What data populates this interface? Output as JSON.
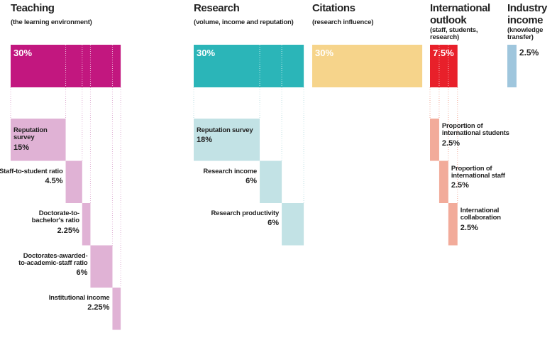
{
  "pillars": [
    {
      "title": "Teaching",
      "subtitle": "(the learning environment)",
      "weight": {
        "value": 30,
        "label": "30%"
      },
      "color": "#c2177f",
      "sub_color": "#e0b2d5",
      "components": [
        {
          "label": "Reputation survey",
          "weight": {
            "value": 15,
            "label": "15%"
          }
        },
        {
          "label": "Staff-to-student ratio",
          "weight": {
            "value": 4.5,
            "label": "4.5%"
          }
        },
        {
          "label": "Doctorate-to-bachelor's ratio",
          "weight": {
            "value": 2.25,
            "label": "2.25%"
          }
        },
        {
          "label": "Doctorates-awarded-to-academic-staff ratio",
          "weight": {
            "value": 6,
            "label": "6%"
          }
        },
        {
          "label": "Institutional income",
          "weight": {
            "value": 2.25,
            "label": "2.25%"
          }
        }
      ]
    },
    {
      "title": "Research",
      "subtitle": "(volume, income and reputation)",
      "weight": {
        "value": 30,
        "label": "30%"
      },
      "color": "#2bb5b8",
      "sub_color": "#c2e2e5",
      "components": [
        {
          "label": "Reputation survey",
          "weight": {
            "value": 18,
            "label": "18%"
          }
        },
        {
          "label": "Research income",
          "weight": {
            "value": 6,
            "label": "6%"
          }
        },
        {
          "label": "Research productivity",
          "weight": {
            "value": 6,
            "label": "6%"
          }
        }
      ]
    },
    {
      "title": "Citations",
      "subtitle": "(research influence)",
      "weight": {
        "value": 30,
        "label": "30%"
      },
      "color": "#f6d48b",
      "sub_color": "#fbe8c0",
      "components": []
    },
    {
      "title": "International outlook",
      "subtitle": "(staff, students, research)",
      "weight": {
        "value": 7.5,
        "label": "7.5%"
      },
      "color": "#e8202a",
      "sub_color": "#f2ab9a",
      "components": [
        {
          "label": "Proportion of international students",
          "weight": {
            "value": 2.5,
            "label": "2.5%"
          }
        },
        {
          "label": "Proportion of international staff",
          "weight": {
            "value": 2.5,
            "label": "2.5%"
          }
        },
        {
          "label": "International collaboration",
          "weight": {
            "value": 2.5,
            "label": "2.5%"
          }
        }
      ]
    },
    {
      "title": "Industry income",
      "subtitle": "(knowledge transfer)",
      "weight": {
        "value": 2.5,
        "label": "2.5%"
      },
      "color": "#9fc6dd",
      "sub_color": "#d3e5ef",
      "components": []
    }
  ]
}
